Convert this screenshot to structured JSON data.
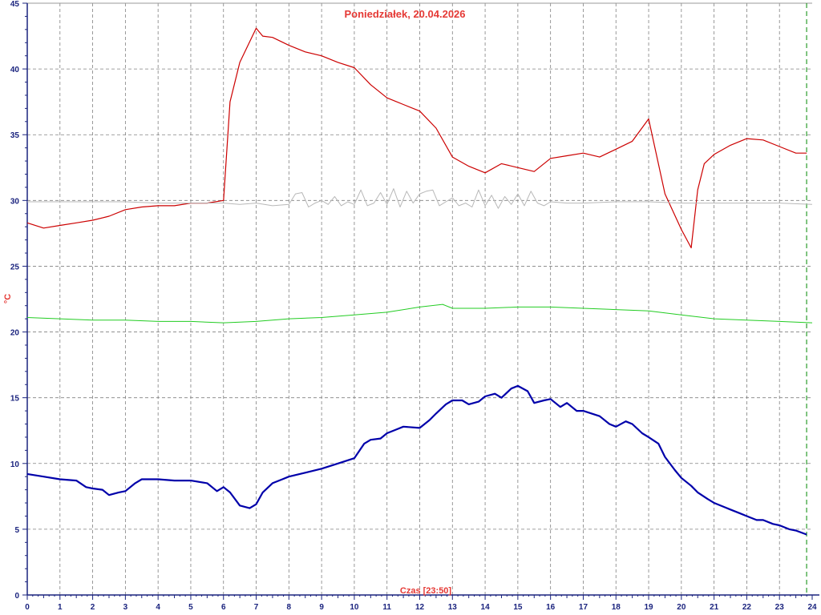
{
  "chart_data": {
    "type": "line",
    "title": "Poniedziałek, 20.04.2026",
    "xlabel": "Czas [23:50]",
    "ylabel": "°C",
    "xlim": [
      0,
      24
    ],
    "ylim": [
      0,
      45
    ],
    "x_ticks": [
      0,
      1,
      2,
      3,
      4,
      5,
      6,
      7,
      8,
      9,
      10,
      11,
      12,
      13,
      14,
      15,
      16,
      17,
      18,
      19,
      20,
      21,
      22,
      23,
      24
    ],
    "y_ticks": [
      0,
      5,
      10,
      15,
      20,
      25,
      30,
      35,
      40,
      45
    ],
    "grid": true,
    "current_time_marker": 23.83,
    "colors": {
      "red": "#cc0000",
      "gray": "#b8b8b8",
      "green": "#22cc22",
      "blue": "#0000aa",
      "grid": "#808080",
      "axis": "#1a237e",
      "marker": "#008800"
    },
    "series": [
      {
        "color": "#cc0000",
        "x": [
          0,
          0.5,
          1,
          1.5,
          2,
          2.5,
          3,
          3.5,
          4,
          4.5,
          5,
          5.5,
          6,
          6.2,
          6.5,
          7,
          7.2,
          7.5,
          8,
          8.5,
          9,
          9.5,
          10,
          10.5,
          11,
          11.5,
          12,
          12.5,
          13,
          13.5,
          14,
          14.5,
          15,
          15.5,
          16,
          16.5,
          17,
          17.5,
          18,
          18.5,
          19,
          19.5,
          20,
          20.3,
          20.5,
          20.7,
          21,
          21.5,
          22,
          22.5,
          23,
          23.5,
          23.83
        ],
        "values": [
          28.3,
          27.9,
          28.1,
          28.3,
          28.5,
          28.8,
          29.3,
          29.5,
          29.6,
          29.6,
          29.8,
          29.8,
          30.0,
          37.5,
          40.5,
          43.1,
          42.5,
          42.4,
          41.8,
          41.3,
          41.0,
          40.5,
          40.1,
          38.8,
          37.8,
          37.3,
          36.8,
          35.5,
          33.3,
          32.6,
          32.1,
          32.8,
          32.5,
          32.2,
          33.2,
          33.4,
          33.6,
          33.3,
          33.9,
          34.5,
          36.2,
          30.5,
          27.8,
          26.4,
          30.8,
          32.8,
          33.5,
          34.2,
          34.7,
          34.6,
          34.1,
          33.6,
          33.6
        ]
      },
      {
        "color": "#b8b8b8",
        "x": [
          0,
          1,
          2,
          3,
          4,
          5,
          6,
          6.5,
          7,
          7.5,
          8,
          8.2,
          8.4,
          8.6,
          8.8,
          9,
          9.2,
          9.4,
          9.6,
          9.8,
          10,
          10.2,
          10.4,
          10.6,
          10.8,
          11,
          11.2,
          11.4,
          11.6,
          11.8,
          12,
          12.2,
          12.4,
          12.6,
          12.8,
          13,
          13.2,
          13.4,
          13.6,
          13.8,
          14,
          14.2,
          14.4,
          14.6,
          14.8,
          15,
          15.2,
          15.4,
          15.6,
          15.8,
          16,
          16.5,
          17,
          18,
          19,
          20,
          21,
          22,
          23,
          24
        ],
        "values": [
          29.9,
          29.9,
          29.9,
          29.9,
          29.8,
          29.8,
          29.8,
          29.7,
          29.8,
          29.6,
          29.7,
          30.5,
          30.6,
          29.5,
          29.8,
          30.0,
          29.7,
          30.3,
          29.6,
          29.9,
          29.7,
          30.8,
          29.6,
          29.8,
          30.6,
          29.7,
          30.9,
          29.5,
          30.7,
          29.8,
          30.5,
          30.7,
          30.8,
          29.6,
          29.9,
          30.2,
          29.6,
          29.8,
          29.5,
          30.8,
          29.6,
          30.4,
          29.4,
          30.3,
          29.7,
          30.5,
          29.6,
          30.7,
          29.8,
          29.6,
          29.9,
          29.8,
          29.8,
          29.9,
          29.9,
          29.8,
          29.8,
          29.8,
          29.8,
          29.7
        ]
      },
      {
        "color": "#22cc22",
        "x": [
          0,
          1,
          2,
          3,
          4,
          5,
          6,
          7,
          8,
          9,
          10,
          11,
          12,
          12.7,
          13,
          14,
          15,
          16,
          17,
          18,
          19,
          20,
          21,
          22,
          23,
          24
        ],
        "values": [
          21.1,
          21.0,
          20.9,
          20.9,
          20.8,
          20.8,
          20.7,
          20.8,
          21.0,
          21.1,
          21.3,
          21.5,
          21.9,
          22.1,
          21.8,
          21.8,
          21.9,
          21.9,
          21.8,
          21.7,
          21.6,
          21.3,
          21.0,
          20.9,
          20.8,
          20.7
        ]
      },
      {
        "color": "#0000aa",
        "x": [
          0,
          0.5,
          1,
          1.5,
          1.8,
          2,
          2.3,
          2.5,
          2.8,
          3,
          3.3,
          3.5,
          3.8,
          4,
          4.5,
          5,
          5.5,
          5.8,
          6,
          6.2,
          6.5,
          6.8,
          7,
          7.2,
          7.5,
          7.8,
          8,
          8.5,
          9,
          9.5,
          10,
          10.3,
          10.5,
          10.8,
          11,
          11.3,
          11.5,
          12,
          12.3,
          12.5,
          12.8,
          13,
          13.3,
          13.5,
          13.8,
          14,
          14.3,
          14.5,
          14.8,
          15,
          15.3,
          15.5,
          15.8,
          16,
          16.3,
          16.5,
          16.8,
          17,
          17.5,
          17.8,
          18,
          18.3,
          18.5,
          18.8,
          19,
          19.3,
          19.5,
          19.8,
          20,
          20.3,
          20.5,
          20.8,
          21,
          21.3,
          21.5,
          21.8,
          22,
          22.3,
          22.5,
          22.8,
          23,
          23.3,
          23.5,
          23.83
        ],
        "values": [
          9.2,
          9.0,
          8.8,
          8.7,
          8.2,
          8.1,
          8.0,
          7.6,
          7.8,
          7.9,
          8.5,
          8.8,
          8.8,
          8.8,
          8.7,
          8.7,
          8.5,
          7.9,
          8.2,
          7.8,
          6.8,
          6.6,
          6.9,
          7.8,
          8.5,
          8.8,
          9.0,
          9.3,
          9.6,
          10.0,
          10.4,
          11.5,
          11.8,
          11.9,
          12.3,
          12.6,
          12.8,
          12.7,
          13.3,
          13.8,
          14.5,
          14.8,
          14.8,
          14.5,
          14.7,
          15.1,
          15.3,
          15.0,
          15.7,
          15.9,
          15.5,
          14.6,
          14.8,
          14.9,
          14.3,
          14.6,
          14.0,
          14.0,
          13.6,
          13.0,
          12.8,
          13.2,
          13.0,
          12.3,
          12.0,
          11.5,
          10.5,
          9.5,
          8.9,
          8.3,
          7.8,
          7.3,
          7.0,
          6.7,
          6.5,
          6.2,
          6.0,
          5.7,
          5.7,
          5.4,
          5.3,
          5.0,
          4.9,
          4.6
        ]
      }
    ]
  }
}
